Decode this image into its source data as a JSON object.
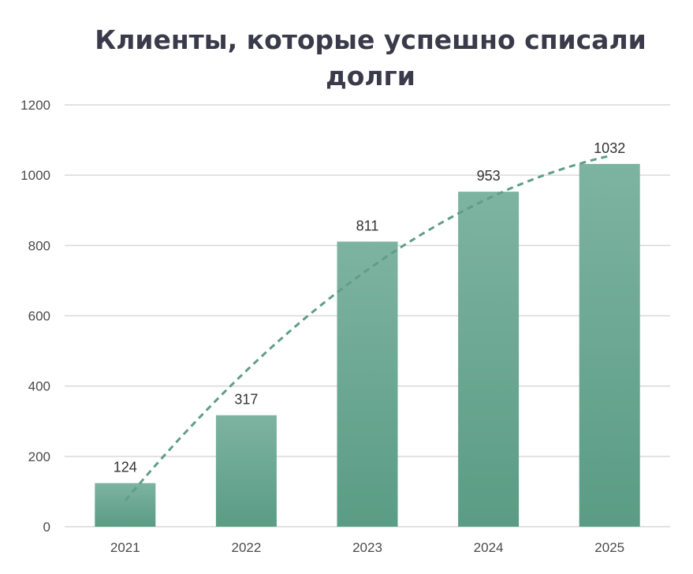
{
  "chart_data": {
    "type": "bar",
    "title": "Клиенты, которые успешно списали долги",
    "categories": [
      "2021",
      "2022",
      "2023",
      "2024",
      "2025"
    ],
    "values": [
      124,
      317,
      811,
      953,
      1032
    ],
    "xlabel": "",
    "ylabel": "",
    "ylim": [
      0,
      1200
    ],
    "yticks": [
      0,
      200,
      400,
      600,
      800,
      1000,
      1200
    ],
    "grid": true,
    "legend": "none",
    "trendline": {
      "type": "polynomial",
      "style": "dashed",
      "color": "#5f9e88"
    },
    "colors": {
      "bar_top": "#7db3a1",
      "bar_bottom": "#5a9c85",
      "grid": "#d9d9d9",
      "title": "#3a3a4a"
    }
  }
}
